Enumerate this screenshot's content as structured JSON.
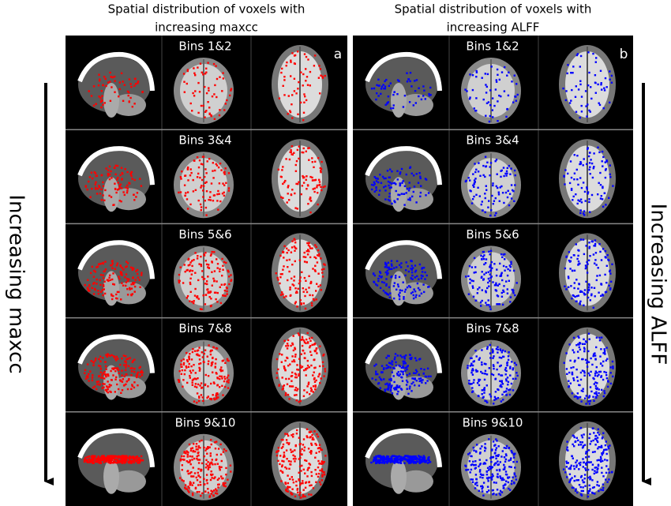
{
  "panels": [
    {
      "title_lines": [
        "Spatial distribution of voxels with",
        "increasing  maxcc"
      ],
      "letter": "a",
      "overlay_color": "#ff0000",
      "rows": [
        {
          "label": "Bins 1&2"
        },
        {
          "label": "Bins 3&4"
        },
        {
          "label": "Bins 5&6"
        },
        {
          "label": "Bins 7&8"
        },
        {
          "label": "Bins 9&10"
        }
      ]
    },
    {
      "title_lines": [
        "Spatial distribution of voxels with",
        "increasing ALFF"
      ],
      "letter": "b",
      "overlay_color": "#0000ff",
      "rows": [
        {
          "label": "Bins 1&2"
        },
        {
          "label": "Bins 3&4"
        },
        {
          "label": "Bins 5&6"
        },
        {
          "label": "Bins 7&8"
        },
        {
          "label": "Bins 9&10"
        }
      ]
    }
  ],
  "side_labels": {
    "left": "Increasing maxcc",
    "right": "Increasing ALFF"
  }
}
